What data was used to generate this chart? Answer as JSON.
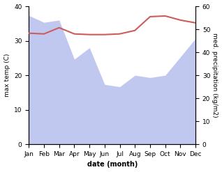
{
  "months": [
    "Jan",
    "Feb",
    "Mar",
    "Apr",
    "May",
    "Jun",
    "Jul",
    "Aug",
    "Sep",
    "Oct",
    "Nov",
    "Dec"
  ],
  "month_indices": [
    1,
    2,
    3,
    4,
    5,
    6,
    7,
    8,
    9,
    10,
    11,
    12
  ],
  "max_temp": [
    32.2,
    32.0,
    33.8,
    32.0,
    31.8,
    31.8,
    32.0,
    33.0,
    37.0,
    37.2,
    36.0,
    35.2
  ],
  "precipitation": [
    56.0,
    53.0,
    54.0,
    37.0,
    42.0,
    26.0,
    25.0,
    30.0,
    29.0,
    30.0,
    38.0,
    46.0
  ],
  "temp_color": "#cd5c5c",
  "precip_fill_color": "#c0c8f0",
  "ylim_temp": [
    0,
    40
  ],
  "ylim_precip": [
    0,
    60
  ],
  "ylabel_left": "max temp (C)",
  "ylabel_right": "med. precipitation (kg/m2)",
  "xlabel": "date (month)",
  "fig_width": 3.18,
  "fig_height": 2.47,
  "dpi": 100
}
